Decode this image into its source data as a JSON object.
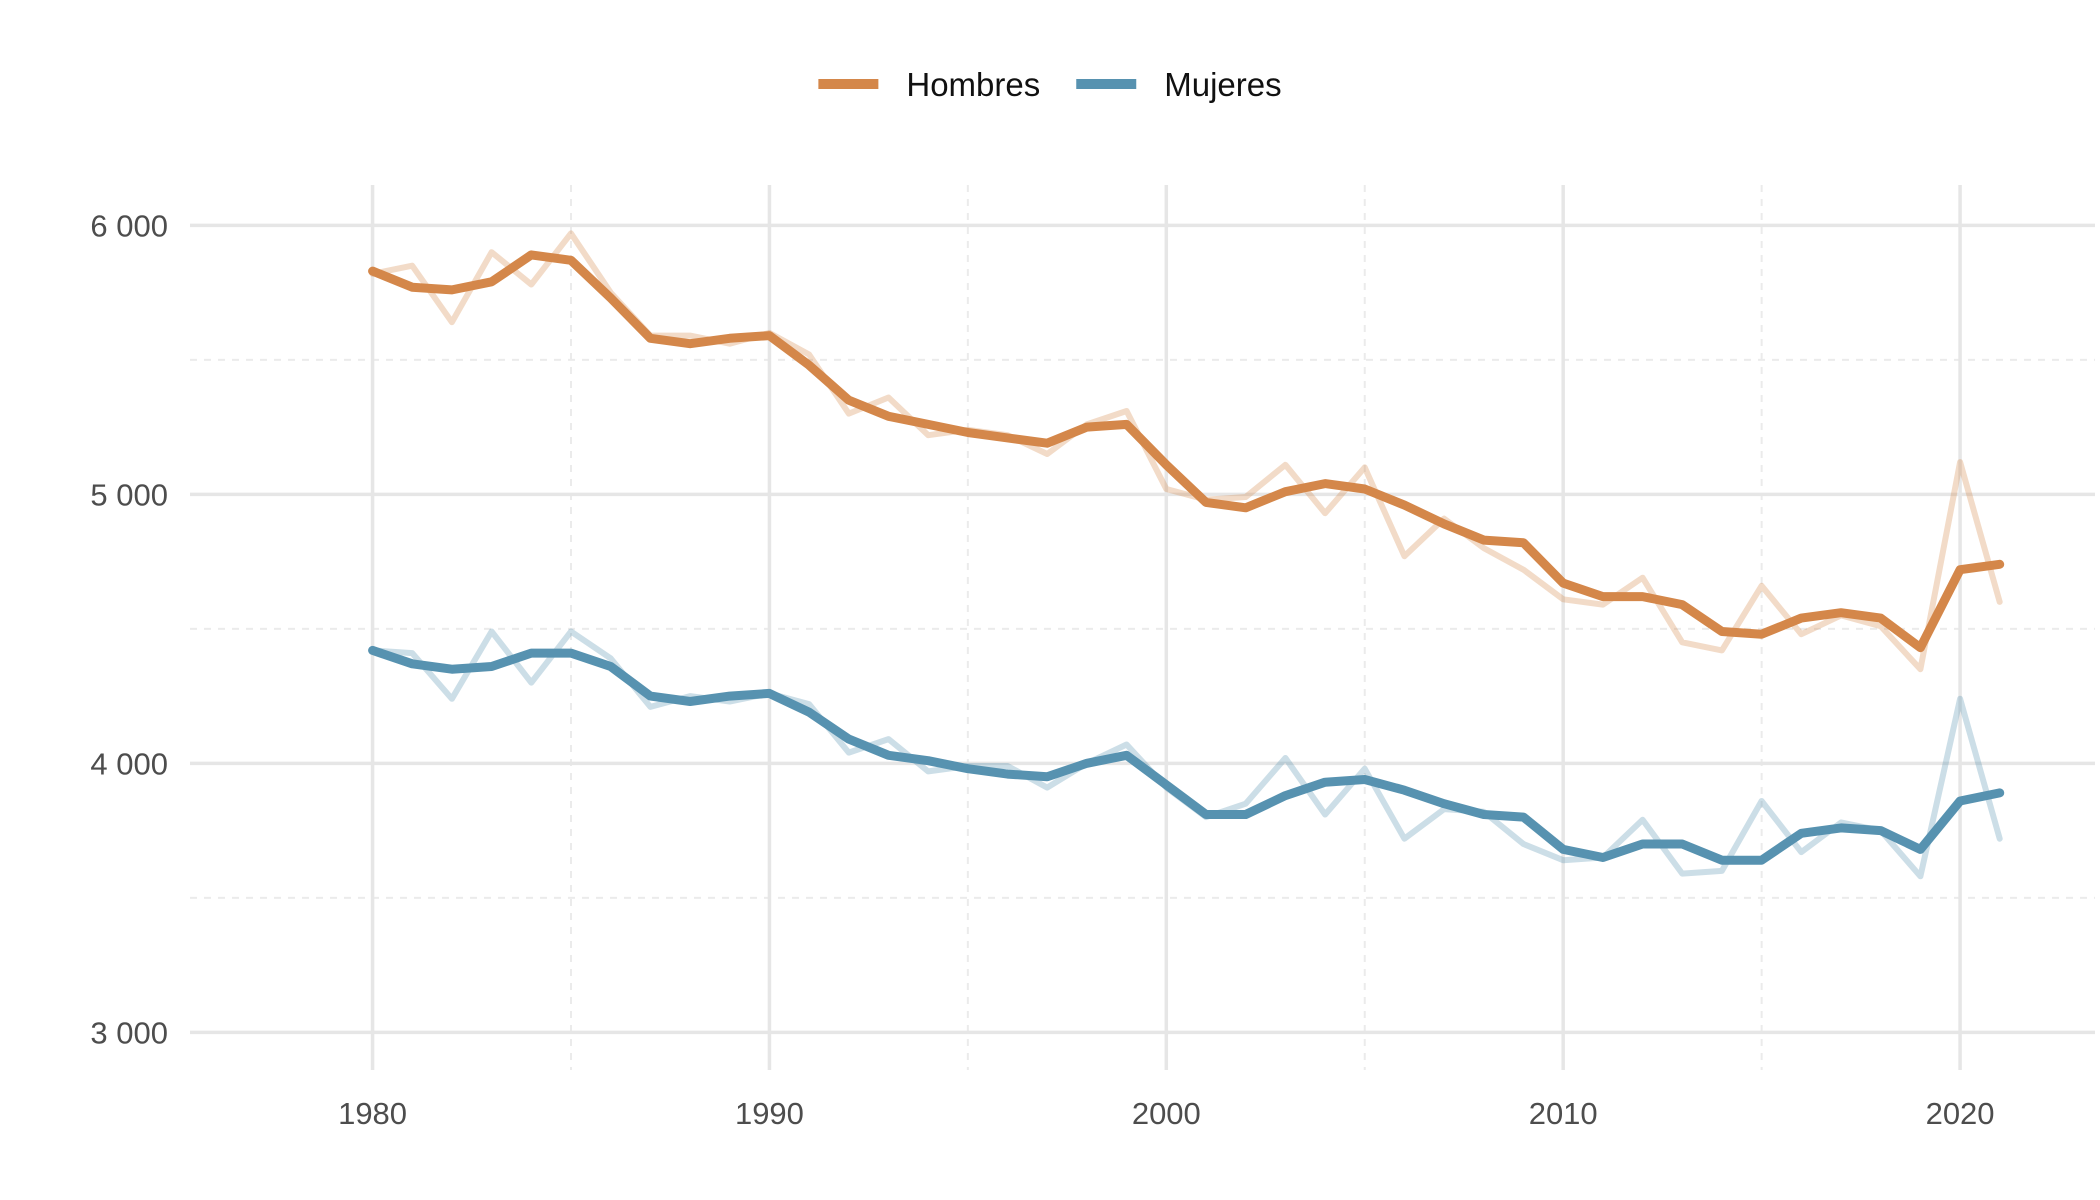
{
  "chart_data": {
    "type": "line",
    "title": "",
    "xlabel": "",
    "ylabel": "",
    "xlim": [
      1977.9,
      1982.8
    ],
    "ylim": [
      2860,
      6150
    ],
    "x_ticks": [
      {
        "value": 1980,
        "label": "1980"
      },
      {
        "value": 1990,
        "label": "1990"
      },
      {
        "value": 2000,
        "label": "2000"
      },
      {
        "value": 2010,
        "label": "2010"
      },
      {
        "value": 2020,
        "label": "2020"
      }
    ],
    "x_minor_ticks": [
      1985,
      1995,
      2005,
      2015
    ],
    "y_ticks": [
      {
        "value": 3000,
        "label": "3 000"
      },
      {
        "value": 4000,
        "label": "4 000"
      },
      {
        "value": 5000,
        "label": "5 000"
      },
      {
        "value": 6000,
        "label": "6 000"
      }
    ],
    "y_minor_ticks": [
      3500,
      4500,
      5500
    ],
    "grid": true,
    "legend_position": "top",
    "x": [
      1980,
      1981,
      1982,
      1983,
      1984,
      1985,
      1986,
      1987,
      1988,
      1989,
      1990,
      1991,
      1992,
      1993,
      1994,
      1995,
      1996,
      1997,
      1998,
      1999,
      2000,
      2001,
      2002,
      2003,
      2004,
      2005,
      2006,
      2007,
      2008,
      2009,
      2010,
      2011,
      2012,
      2013,
      2014,
      2015,
      2016,
      2017,
      2018,
      2019,
      2020,
      2021
    ],
    "series": [
      {
        "name": "Hombres",
        "color": "#D4874A",
        "raw": [
          5820,
          5850,
          5640,
          5900,
          5780,
          5970,
          5750,
          5590,
          5590,
          5560,
          5600,
          5520,
          5300,
          5360,
          5220,
          5240,
          5220,
          5150,
          5260,
          5310,
          5020,
          4980,
          4990,
          5110,
          4930,
          5100,
          4770,
          4910,
          4800,
          4720,
          4610,
          4590,
          4690,
          4450,
          4420,
          4660,
          4480,
          4550,
          4510,
          4350,
          5120,
          4600
        ],
        "smoothed": [
          5830,
          5770,
          5760,
          5790,
          5890,
          5870,
          5730,
          5580,
          5560,
          5580,
          5590,
          5480,
          5350,
          5290,
          5260,
          5230,
          5210,
          5190,
          5250,
          5260,
          5110,
          4970,
          4950,
          5010,
          5040,
          5020,
          4960,
          4890,
          4830,
          4820,
          4670,
          4620,
          4620,
          4590,
          4490,
          4480,
          4540,
          4560,
          4540,
          4430,
          4720,
          4740
        ]
      },
      {
        "name": "Mujeres",
        "color": "#5792B0",
        "raw": [
          4420,
          4410,
          4240,
          4490,
          4300,
          4490,
          4390,
          4210,
          4250,
          4230,
          4260,
          4220,
          4040,
          4090,
          3970,
          3990,
          3990,
          3910,
          4000,
          4070,
          3910,
          3800,
          3850,
          4020,
          3810,
          3980,
          3720,
          3830,
          3820,
          3700,
          3640,
          3650,
          3790,
          3590,
          3600,
          3860,
          3670,
          3780,
          3750,
          3580,
          4240,
          3720
        ],
        "smoothed": [
          4420,
          4370,
          4350,
          4360,
          4410,
          4410,
          4360,
          4250,
          4230,
          4250,
          4260,
          4190,
          4090,
          4030,
          4010,
          3980,
          3960,
          3950,
          4000,
          4030,
          3920,
          3810,
          3810,
          3880,
          3930,
          3940,
          3900,
          3850,
          3810,
          3800,
          3680,
          3650,
          3700,
          3700,
          3640,
          3640,
          3740,
          3760,
          3750,
          3680,
          3860,
          3890
        ]
      }
    ]
  }
}
